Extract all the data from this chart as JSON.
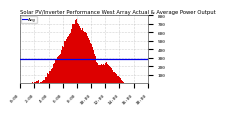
{
  "title": "Solar PV/Inverter Performance West Array Actual & Average Power Output",
  "background_color": "#ffffff",
  "plot_bg_color": "#ffffff",
  "grid_color": "#aaaaaa",
  "bar_color": "#dd0000",
  "avg_line_color": "#0000ee",
  "avg_power": 290,
  "ymax": 800,
  "ymin": 0,
  "ytick_values": [
    100,
    200,
    300,
    400,
    500,
    600,
    700,
    800
  ],
  "num_bars": 144,
  "title_fontsize": 3.8,
  "tick_fontsize": 3.2,
  "legend_label": "Avg",
  "legend_fontsize": 3.0
}
